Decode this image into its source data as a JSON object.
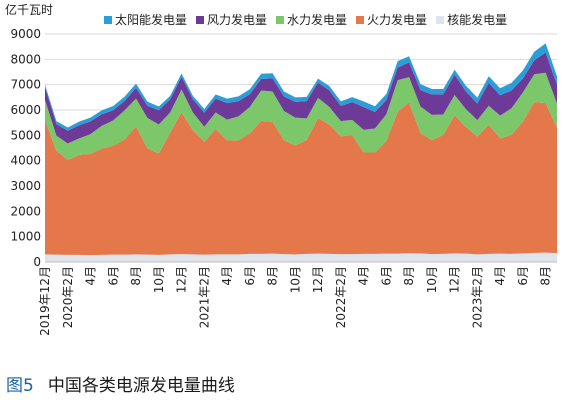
{
  "figure": {
    "unit_label": "亿千瓦时",
    "caption_number": "图5",
    "caption_title": "中国各类电源发电量曲线"
  },
  "chart_data": {
    "type": "area",
    "stacked": true,
    "ylim": [
      0,
      9000
    ],
    "yticks": [
      0,
      1000,
      2000,
      3000,
      4000,
      5000,
      6000,
      7000,
      8000,
      9000
    ],
    "grid": "horizontal",
    "legend_position": "top",
    "x_labels": [
      "2019年12月",
      "",
      "2020年2月",
      "",
      "4月",
      "",
      "6月",
      "",
      "8月",
      "",
      "10月",
      "",
      "12月",
      "",
      "2021年2月",
      "",
      "4月",
      "",
      "6月",
      "",
      "8月",
      "",
      "10月",
      "",
      "12月",
      "",
      "2022年2月",
      "",
      "4月",
      "",
      "6月",
      "",
      "8月",
      "",
      "10月",
      "",
      "12月",
      "",
      "2023年2月",
      "",
      "4月",
      "",
      "6月",
      "",
      "8月",
      ""
    ],
    "series": [
      {
        "name": "核能发电量",
        "color": "#dde4ec",
        "values": [
          300,
          290,
          280,
          280,
          270,
          280,
          290,
          290,
          300,
          290,
          280,
          300,
          310,
          300,
          290,
          300,
          300,
          300,
          320,
          320,
          330,
          310,
          300,
          320,
          330,
          320,
          310,
          310,
          320,
          320,
          330,
          330,
          350,
          340,
          310,
          320,
          340,
          330,
          300,
          320,
          330,
          320,
          340,
          360,
          370,
          350
        ]
      },
      {
        "name": "火力发电量",
        "color": "#e4784a",
        "values": [
          5300,
          4100,
          3750,
          3950,
          4000,
          4200,
          4300,
          4550,
          5050,
          4200,
          4000,
          4800,
          5600,
          4900,
          4450,
          4950,
          4500,
          4500,
          4750,
          5250,
          5200,
          4500,
          4300,
          4500,
          5350,
          5100,
          4650,
          4700,
          4000,
          4000,
          4450,
          5600,
          5950,
          4750,
          4500,
          4700,
          5450,
          5000,
          4650,
          5100,
          4550,
          4700,
          5200,
          5950,
          5900,
          4950
        ]
      },
      {
        "name": "水力发电量",
        "color": "#7cc76a",
        "values": [
          800,
          600,
          650,
          650,
          780,
          900,
          1000,
          1150,
          1100,
          1200,
          1150,
          800,
          900,
          700,
          600,
          650,
          820,
          950,
          1050,
          1200,
          1200,
          1150,
          1100,
          850,
          800,
          700,
          600,
          600,
          900,
          950,
          1050,
          1250,
          1000,
          1050,
          1000,
          800,
          800,
          700,
          650,
          750,
          900,
          1050,
          1150,
          1100,
          1200,
          950
        ]
      },
      {
        "name": "风力发电量",
        "color": "#6d3a98",
        "values": [
          500,
          450,
          500,
          520,
          500,
          450,
          400,
          370,
          420,
          480,
          560,
          520,
          500,
          520,
          550,
          550,
          650,
          600,
          500,
          460,
          520,
          580,
          620,
          680,
          600,
          650,
          600,
          700,
          900,
          650,
          560,
          500,
          580,
          650,
          800,
          800,
          800,
          700,
          650,
          900,
          800,
          700,
          550,
          550,
          800,
          750
        ]
      },
      {
        "name": "太阳能发电量",
        "color": "#2c9ed7",
        "values": [
          100,
          120,
          130,
          140,
          150,
          160,
          170,
          170,
          170,
          160,
          150,
          140,
          130,
          140,
          150,
          160,
          180,
          190,
          200,
          200,
          200,
          190,
          180,
          170,
          160,
          170,
          180,
          200,
          220,
          230,
          240,
          250,
          240,
          230,
          220,
          210,
          200,
          220,
          240,
          260,
          280,
          300,
          320,
          340,
          360,
          330
        ]
      }
    ],
    "legend_order": [
      "太阳能发电量",
      "风力发电量",
      "水力发电量",
      "火力发电量",
      "核能发电量"
    ]
  }
}
